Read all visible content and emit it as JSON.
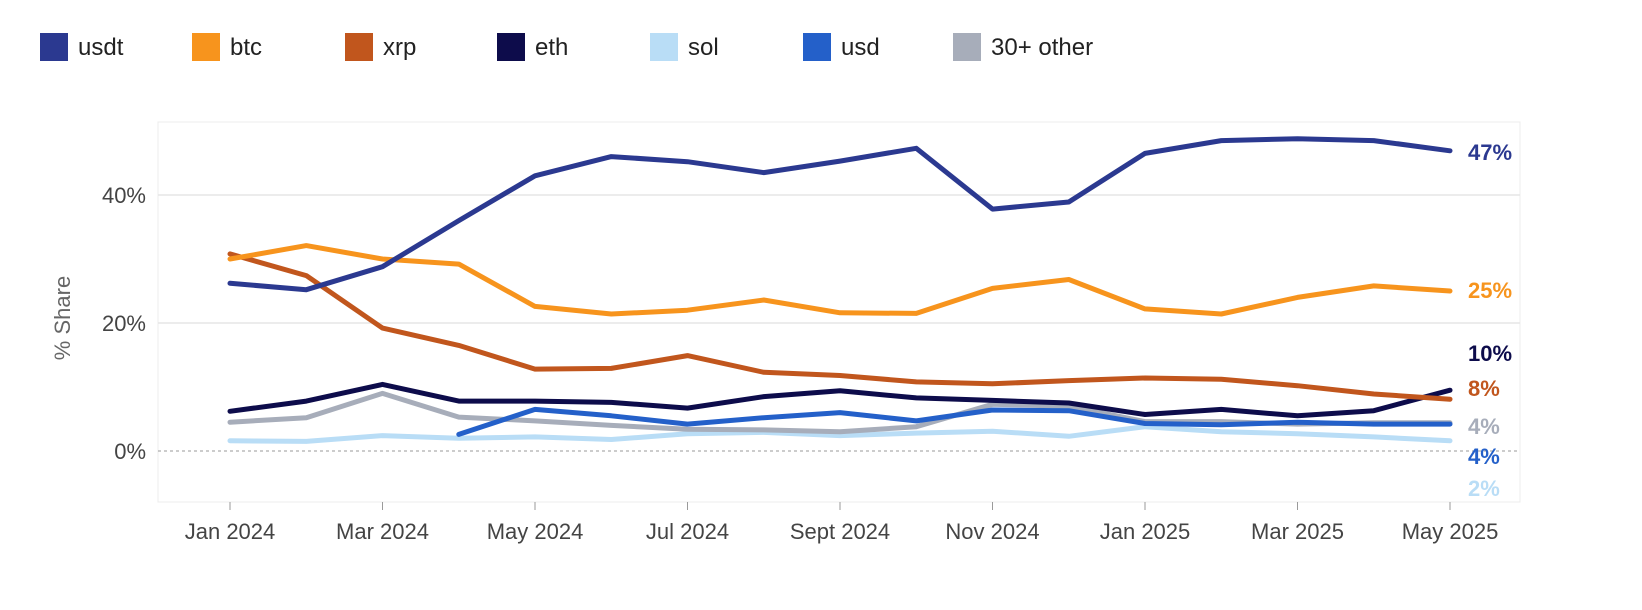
{
  "chart_data": {
    "type": "line",
    "xlabel": "",
    "ylabel": "% Share",
    "ylim": [
      -7.5,
      51
    ],
    "x": [
      "2024-01",
      "2024-02",
      "2024-03",
      "2024-04",
      "2024-05",
      "2024-06",
      "2024-07",
      "2024-08",
      "2024-09",
      "2024-10",
      "2024-11",
      "2024-12",
      "2025-01",
      "2025-02",
      "2025-03",
      "2025-04",
      "2025-05"
    ],
    "x_ticks": [
      {
        "x": "2024-01",
        "label": "Jan 2024"
      },
      {
        "x": "2024-03",
        "label": "Mar 2024"
      },
      {
        "x": "2024-05",
        "label": "May 2024"
      },
      {
        "x": "2024-07",
        "label": "Jul 2024"
      },
      {
        "x": "2024-09",
        "label": "Sept 2024"
      },
      {
        "x": "2024-11",
        "label": "Nov 2024"
      },
      {
        "x": "2025-01",
        "label": "Jan 2025"
      },
      {
        "x": "2025-03",
        "label": "Mar 2025"
      },
      {
        "x": "2025-05",
        "label": "May 2025"
      }
    ],
    "y_ticks": [
      {
        "value": 0,
        "label": "0%"
      },
      {
        "value": 20,
        "label": "20%"
      },
      {
        "value": 40,
        "label": "40%"
      }
    ],
    "grid": true,
    "legend_position": "top",
    "series": [
      {
        "name": "usdt",
        "color": "#2b3990",
        "end_label": "47%",
        "values": [
          26.2,
          25.2,
          28.8,
          36,
          43,
          46,
          45.2,
          43.5,
          45.3,
          47.3,
          37.8,
          38.9,
          46.5,
          48.5,
          48.8,
          48.5,
          46.9
        ]
      },
      {
        "name": "btc",
        "color": "#f7941d",
        "end_label": "25%",
        "values": [
          30,
          32.1,
          30,
          29.2,
          22.6,
          21.4,
          22,
          23.6,
          21.6,
          21.5,
          25.4,
          26.8,
          22.2,
          21.4,
          24,
          25.8,
          25
        ]
      },
      {
        "name": "xrp",
        "color": "#c1561d",
        "end_label": "8%",
        "values": [
          30.8,
          27.4,
          19.2,
          16.5,
          12.8,
          12.9,
          14.9,
          12.3,
          11.8,
          10.8,
          10.5,
          11,
          11.4,
          11.2,
          10.2,
          8.9,
          8.1
        ]
      },
      {
        "name": "eth",
        "color": "#0d0c4b",
        "end_label": "10%",
        "values": [
          6.2,
          7.8,
          10.4,
          7.8,
          7.8,
          7.6,
          6.7,
          8.5,
          9.4,
          8.3,
          7.9,
          7.5,
          5.7,
          6.5,
          5.5,
          6.3,
          9.5
        ]
      },
      {
        "name": "sol",
        "color": "#b9ddf6",
        "end_label": "2%",
        "values": [
          1.6,
          1.5,
          2.4,
          2,
          2.2,
          1.8,
          2.7,
          2.9,
          2.4,
          2.8,
          3.1,
          2.3,
          3.8,
          3,
          2.7,
          2.2,
          1.6
        ]
      },
      {
        "name": "usd",
        "color": "#2460c9",
        "end_label": "4%",
        "values": [
          null,
          null,
          null,
          2.6,
          6.5,
          5.5,
          4.2,
          5.2,
          6,
          4.7,
          6.4,
          6.3,
          4.3,
          4.1,
          4.5,
          4.2,
          4.2
        ]
      },
      {
        "name": "30+ other",
        "color": "#a7adba",
        "end_label": "4%",
        "values": [
          4.5,
          5.2,
          9,
          5.3,
          4.7,
          4,
          3.4,
          3.3,
          3,
          3.8,
          7.3,
          7,
          4.6,
          4.6,
          4.2,
          4.4,
          4.4
        ]
      }
    ]
  }
}
